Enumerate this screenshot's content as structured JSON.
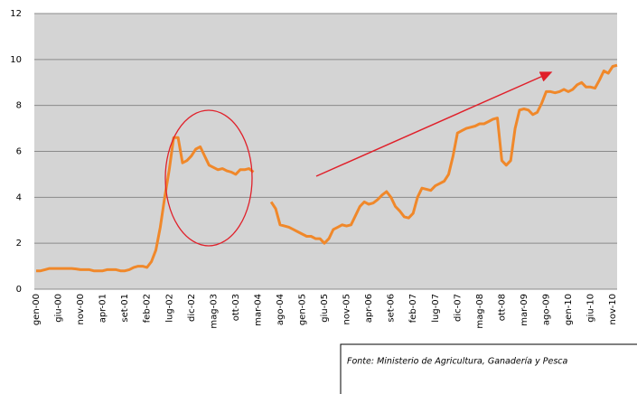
{
  "chart_data": {
    "type": "line",
    "categories": [
      "gen-00",
      null,
      null,
      null,
      null,
      "giu-00",
      null,
      null,
      null,
      null,
      "nov-00",
      null,
      null,
      null,
      null,
      "apr-01",
      null,
      null,
      null,
      null,
      "set-01",
      null,
      null,
      null,
      null,
      "feb-02",
      null,
      null,
      null,
      null,
      "lug-02",
      null,
      null,
      null,
      null,
      "dic-02",
      null,
      null,
      null,
      null,
      "mag-03",
      null,
      null,
      null,
      null,
      "ott-03",
      null,
      null,
      null,
      null,
      "mar-04",
      null,
      null,
      null,
      null,
      "ago-04",
      null,
      null,
      null,
      null,
      "gen-05",
      null,
      null,
      null,
      null,
      "giu-05",
      null,
      null,
      null,
      null,
      "nov-05",
      null,
      null,
      null,
      null,
      "apr-06",
      null,
      null,
      null,
      null,
      "set-06",
      null,
      null,
      null,
      null,
      "feb-07",
      null,
      null,
      null,
      null,
      "lug-07",
      null,
      null,
      null,
      null,
      "dic-07",
      null,
      null,
      null,
      null,
      "mag-08",
      null,
      null,
      null,
      null,
      "ott-08",
      null,
      null,
      null,
      null,
      "mar-09",
      null,
      null,
      null,
      null,
      "ago-09",
      null,
      null,
      null,
      null,
      "gen-10",
      null,
      null,
      null,
      null,
      "giu-10",
      null,
      null,
      null,
      null,
      "nov-10",
      null
    ],
    "values": [
      0.8,
      0.8,
      0.85,
      0.9,
      0.9,
      0.9,
      0.9,
      0.9,
      0.9,
      0.88,
      0.85,
      0.85,
      0.85,
      0.8,
      0.8,
      0.8,
      0.85,
      0.85,
      0.85,
      0.8,
      0.8,
      0.85,
      0.95,
      1.0,
      1.0,
      0.95,
      1.2,
      1.7,
      2.7,
      4.0,
      5.2,
      6.6,
      6.6,
      5.5,
      5.6,
      5.8,
      6.1,
      6.2,
      5.8,
      5.4,
      5.3,
      5.2,
      5.25,
      5.15,
      5.1,
      5.0,
      5.2,
      5.2,
      5.25,
      5.1,
      null,
      null,
      null,
      3.8,
      3.5,
      2.8,
      2.75,
      2.7,
      2.6,
      2.5,
      2.4,
      2.3,
      2.3,
      2.2,
      2.2,
      2.0,
      2.2,
      2.6,
      2.7,
      2.8,
      2.75,
      2.8,
      3.2,
      3.6,
      3.8,
      3.7,
      3.75,
      3.9,
      4.1,
      4.25,
      4.0,
      3.6,
      3.4,
      3.15,
      3.1,
      3.3,
      4.0,
      4.4,
      4.35,
      4.3,
      4.5,
      4.6,
      4.7,
      5.0,
      5.8,
      6.8,
      6.9,
      7.0,
      7.05,
      7.1,
      7.2,
      7.2,
      7.3,
      7.4,
      7.45,
      5.6,
      5.4,
      5.6,
      7.0,
      7.8,
      7.85,
      7.8,
      7.6,
      7.7,
      8.1,
      8.6,
      8.6,
      8.55,
      8.6,
      8.7,
      8.6,
      8.7,
      8.9,
      9.0,
      8.8,
      8.8,
      8.75,
      9.1,
      9.5,
      9.4,
      9.7,
      9.75
    ],
    "color": "#f0882a",
    "ylim": [
      0,
      12
    ],
    "yticks": [
      0,
      2,
      4,
      6,
      8,
      10,
      12
    ],
    "grid": true,
    "source": "Fonte: Ministerio  de Agricultura,  Ganadería y Pesca"
  }
}
